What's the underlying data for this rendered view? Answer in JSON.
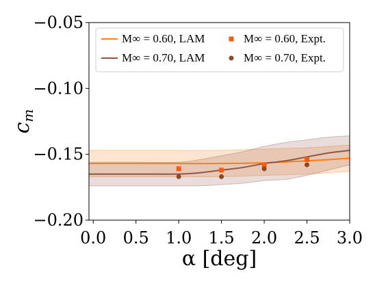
{
  "chart_data": {
    "type": "line",
    "xlabel": "α [deg]",
    "ylabel": "c_m",
    "xlim": [
      -0.05,
      3.0
    ],
    "ylim": [
      -0.2,
      -0.05
    ],
    "xticks": [
      0.0,
      0.5,
      1.0,
      1.5,
      2.0,
      2.5,
      3.0
    ],
    "xtick_labels": [
      "0.0",
      "0.5",
      "1.0",
      "1.5",
      "2.0",
      "2.5",
      "3.0"
    ],
    "yticks": [
      -0.05,
      -0.1,
      -0.15,
      -0.2
    ],
    "ytick_labels": [
      "−0.05",
      "−0.10",
      "−0.15",
      "−0.20"
    ],
    "grid": false,
    "legend_position": "top",
    "series": [
      {
        "name": "M∞ = 0.60, LAM",
        "kind": "line",
        "color": "#ff7f0e",
        "x": [
          -0.05,
          0.5,
          1.0,
          1.5,
          2.0,
          2.5,
          3.0
        ],
        "y": [
          -0.157,
          -0.157,
          -0.157,
          -0.157,
          -0.1565,
          -0.155,
          -0.153
        ],
        "band_upper": [
          -0.147,
          -0.147,
          -0.147,
          -0.147,
          -0.146,
          -0.145,
          -0.143
        ],
        "band_lower": [
          -0.167,
          -0.167,
          -0.167,
          -0.167,
          -0.166,
          -0.165,
          -0.163
        ]
      },
      {
        "name": "M∞ = 0.70, LAM",
        "kind": "line",
        "color": "#8c564b",
        "x": [
          -0.05,
          0.5,
          1.0,
          1.25,
          1.5,
          1.75,
          2.0,
          2.25,
          2.5,
          2.75,
          3.0
        ],
        "y": [
          -0.165,
          -0.165,
          -0.165,
          -0.164,
          -0.162,
          -0.16,
          -0.157,
          -0.155,
          -0.152,
          -0.149,
          -0.147
        ],
        "band_upper": [
          -0.156,
          -0.156,
          -0.156,
          -0.154,
          -0.151,
          -0.148,
          -0.144,
          -0.141,
          -0.139,
          -0.137,
          -0.136
        ],
        "band_lower": [
          -0.174,
          -0.174,
          -0.174,
          -0.174,
          -0.173,
          -0.172,
          -0.17,
          -0.169,
          -0.166,
          -0.162,
          -0.158
        ]
      },
      {
        "name": "M∞ = 0.60, Expt.",
        "kind": "scatter-square",
        "color": "#ff5a0a",
        "x": [
          1.0,
          1.5,
          2.0,
          2.5
        ],
        "y": [
          -0.161,
          -0.162,
          -0.158,
          -0.154
        ]
      },
      {
        "name": "M∞ = 0.70, Expt.",
        "kind": "scatter-circle",
        "color": "#8c4a22",
        "x": [
          1.0,
          1.5,
          2.0,
          2.5
        ],
        "y": [
          -0.167,
          -0.167,
          -0.161,
          -0.158
        ]
      }
    ],
    "legend": [
      {
        "label": "M∞ = 0.60, LAM"
      },
      {
        "label": "M∞ = 0.60, Expt."
      },
      {
        "label": "M∞ = 0.70, LAM"
      },
      {
        "label": "M∞ = 0.70, Expt."
      }
    ]
  }
}
